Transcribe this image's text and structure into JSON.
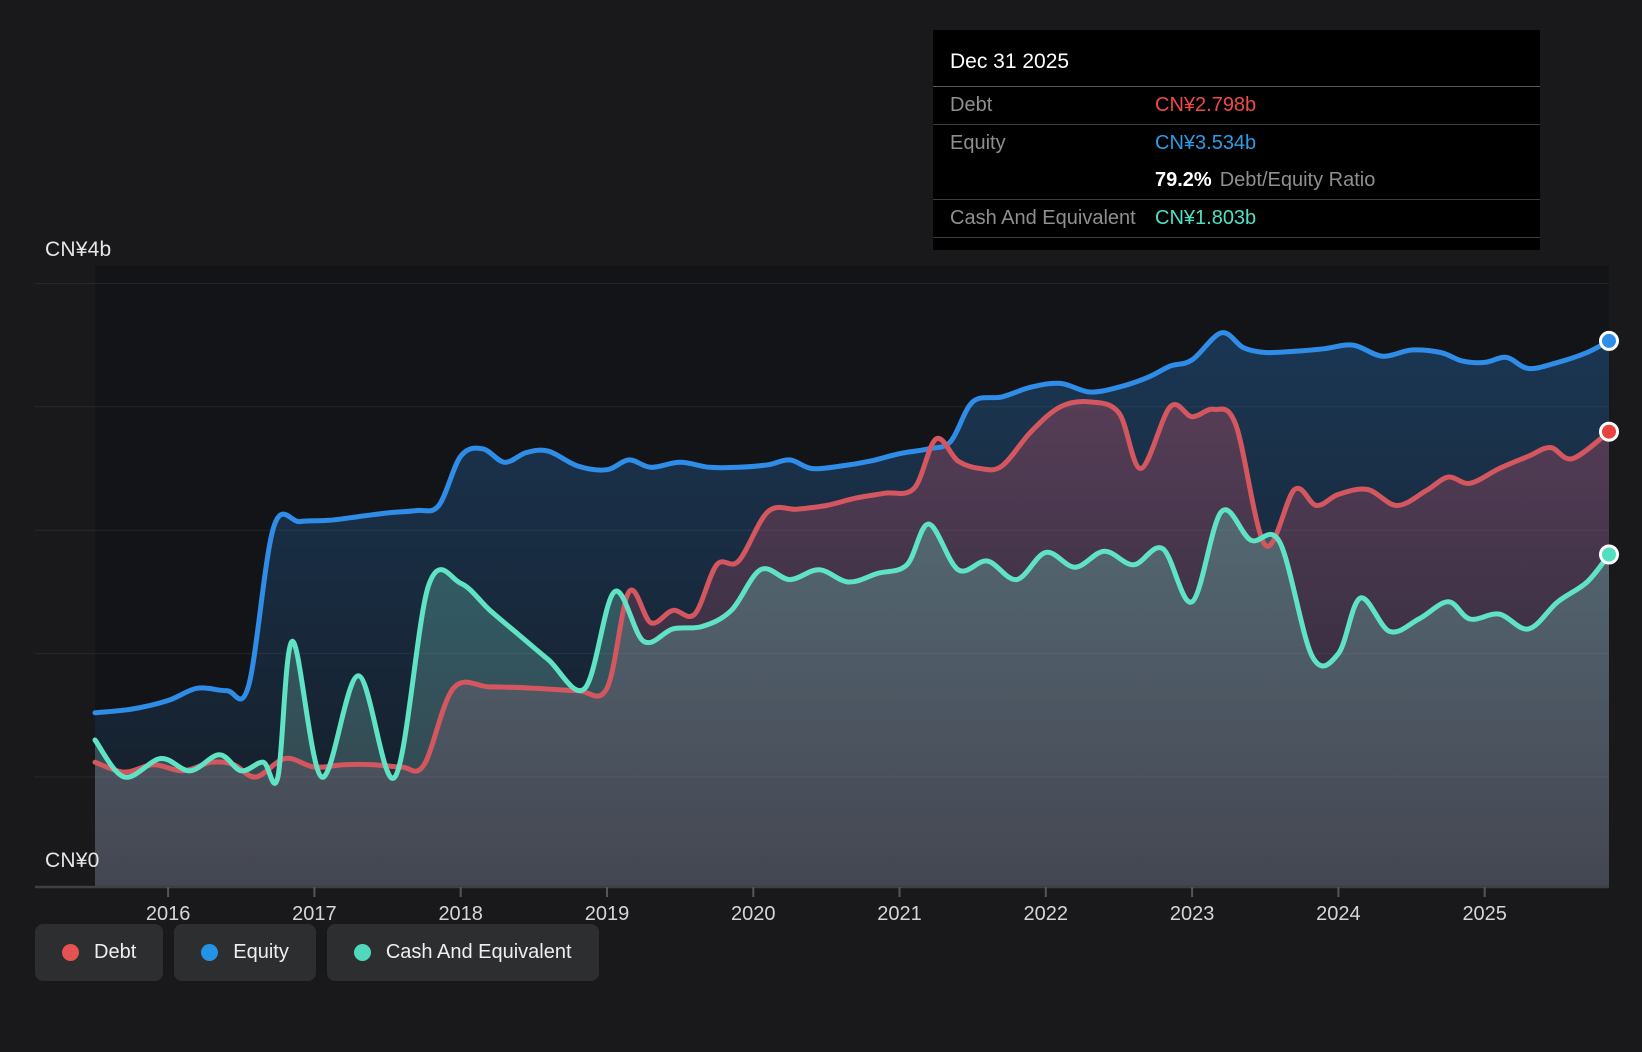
{
  "y_axis": {
    "top_label": "CN¥4b",
    "bottom_label": "CN¥0"
  },
  "x_axis": {
    "tick_years": [
      2016,
      2017,
      2018,
      2019,
      2020,
      2021,
      2022,
      2023,
      2024,
      2025
    ]
  },
  "tooltip": {
    "date": "Dec 31 2025",
    "debt_label": "Debt",
    "debt_value": "CN¥2.798b",
    "equity_label": "Equity",
    "equity_value": "CN¥3.534b",
    "ratio_value": "79.2%",
    "ratio_label": "Debt/Equity Ratio",
    "cash_label": "Cash And Equivalent",
    "cash_value": "CN¥1.803b"
  },
  "legend": [
    {
      "label": "Debt",
      "color": "#e25352"
    },
    {
      "label": "Equity",
      "color": "#2492e6"
    },
    {
      "label": "Cash And Equivalent",
      "color": "#4fd8bc"
    }
  ],
  "colors": {
    "debt_line": "#d4565f",
    "equity_line": "#2f8de8",
    "cash_line": "#5fe3c4",
    "debt_dot": "#e8433f",
    "equity_dot": "#2e8fe8",
    "cash_dot": "#52dfc0",
    "background": "#19191b",
    "plot_background": "#131417",
    "tooltip_background": "#000000"
  },
  "chart_data": {
    "type": "area",
    "title": "Debt to Equity History and Analysis",
    "currency_unit": "CN¥ billions",
    "x_range": [
      2015.5,
      2025.85
    ],
    "y_range": [
      0,
      4
    ],
    "y_tick_interval": 1,
    "grid": true,
    "legend_position": "bottom-left",
    "latest": {
      "date": "Dec 31 2025",
      "debt_b": 2.798,
      "equity_b": 3.534,
      "cash_b": 1.803,
      "debt_equity_ratio_pct": 79.2
    },
    "series": [
      {
        "name": "Equity",
        "points": [
          [
            2015.5,
            0.52
          ],
          [
            2015.75,
            0.55
          ],
          [
            2016.0,
            0.62
          ],
          [
            2016.2,
            0.72
          ],
          [
            2016.4,
            0.7
          ],
          [
            2016.55,
            0.74
          ],
          [
            2016.72,
            2.02
          ],
          [
            2016.9,
            2.07
          ],
          [
            2017.1,
            2.08
          ],
          [
            2017.3,
            2.11
          ],
          [
            2017.5,
            2.14
          ],
          [
            2017.7,
            2.16
          ],
          [
            2017.85,
            2.2
          ],
          [
            2018.0,
            2.6
          ],
          [
            2018.15,
            2.66
          ],
          [
            2018.3,
            2.55
          ],
          [
            2018.45,
            2.63
          ],
          [
            2018.6,
            2.64
          ],
          [
            2018.8,
            2.52
          ],
          [
            2019.0,
            2.49
          ],
          [
            2019.15,
            2.57
          ],
          [
            2019.3,
            2.51
          ],
          [
            2019.5,
            2.55
          ],
          [
            2019.7,
            2.51
          ],
          [
            2019.9,
            2.51
          ],
          [
            2020.1,
            2.53
          ],
          [
            2020.25,
            2.57
          ],
          [
            2020.4,
            2.5
          ],
          [
            2020.6,
            2.52
          ],
          [
            2020.8,
            2.56
          ],
          [
            2021.0,
            2.62
          ],
          [
            2021.2,
            2.66
          ],
          [
            2021.35,
            2.72
          ],
          [
            2021.5,
            3.04
          ],
          [
            2021.7,
            3.08
          ],
          [
            2021.9,
            3.16
          ],
          [
            2022.1,
            3.19
          ],
          [
            2022.3,
            3.12
          ],
          [
            2022.5,
            3.16
          ],
          [
            2022.7,
            3.24
          ],
          [
            2022.85,
            3.33
          ],
          [
            2023.0,
            3.38
          ],
          [
            2023.2,
            3.6
          ],
          [
            2023.35,
            3.48
          ],
          [
            2023.5,
            3.44
          ],
          [
            2023.7,
            3.45
          ],
          [
            2023.9,
            3.47
          ],
          [
            2024.1,
            3.5
          ],
          [
            2024.3,
            3.41
          ],
          [
            2024.5,
            3.46
          ],
          [
            2024.7,
            3.44
          ],
          [
            2024.85,
            3.37
          ],
          [
            2025.0,
            3.36
          ],
          [
            2025.15,
            3.4
          ],
          [
            2025.3,
            3.31
          ],
          [
            2025.5,
            3.36
          ],
          [
            2025.7,
            3.44
          ],
          [
            2025.85,
            3.534
          ]
        ]
      },
      {
        "name": "Debt",
        "points": [
          [
            2015.5,
            0.12
          ],
          [
            2015.7,
            0.04
          ],
          [
            2015.9,
            0.1
          ],
          [
            2016.1,
            0.05
          ],
          [
            2016.3,
            0.12
          ],
          [
            2016.45,
            0.1
          ],
          [
            2016.6,
            0.0
          ],
          [
            2016.8,
            0.15
          ],
          [
            2017.0,
            0.08
          ],
          [
            2017.2,
            0.1
          ],
          [
            2017.4,
            0.1
          ],
          [
            2017.6,
            0.08
          ],
          [
            2017.75,
            0.1
          ],
          [
            2017.95,
            0.72
          ],
          [
            2018.2,
            0.73
          ],
          [
            2018.5,
            0.72
          ],
          [
            2018.8,
            0.7
          ],
          [
            2019.0,
            0.72
          ],
          [
            2019.15,
            1.5
          ],
          [
            2019.3,
            1.25
          ],
          [
            2019.45,
            1.35
          ],
          [
            2019.6,
            1.32
          ],
          [
            2019.75,
            1.72
          ],
          [
            2019.9,
            1.75
          ],
          [
            2020.1,
            2.15
          ],
          [
            2020.3,
            2.17
          ],
          [
            2020.5,
            2.2
          ],
          [
            2020.7,
            2.26
          ],
          [
            2020.9,
            2.3
          ],
          [
            2021.1,
            2.34
          ],
          [
            2021.25,
            2.74
          ],
          [
            2021.4,
            2.56
          ],
          [
            2021.55,
            2.5
          ],
          [
            2021.7,
            2.52
          ],
          [
            2021.9,
            2.8
          ],
          [
            2022.1,
            3.0
          ],
          [
            2022.3,
            3.04
          ],
          [
            2022.5,
            2.95
          ],
          [
            2022.65,
            2.5
          ],
          [
            2022.85,
            3.0
          ],
          [
            2023.0,
            2.92
          ],
          [
            2023.15,
            2.98
          ],
          [
            2023.3,
            2.85
          ],
          [
            2023.5,
            1.88
          ],
          [
            2023.7,
            2.33
          ],
          [
            2023.85,
            2.2
          ],
          [
            2024.0,
            2.29
          ],
          [
            2024.2,
            2.33
          ],
          [
            2024.4,
            2.2
          ],
          [
            2024.6,
            2.32
          ],
          [
            2024.75,
            2.43
          ],
          [
            2024.9,
            2.38
          ],
          [
            2025.1,
            2.5
          ],
          [
            2025.3,
            2.6
          ],
          [
            2025.45,
            2.67
          ],
          [
            2025.6,
            2.58
          ],
          [
            2025.85,
            2.798
          ]
        ]
      },
      {
        "name": "Cash And Equivalent",
        "points": [
          [
            2015.5,
            0.3
          ],
          [
            2015.7,
            0.0
          ],
          [
            2015.95,
            0.15
          ],
          [
            2016.15,
            0.05
          ],
          [
            2016.35,
            0.18
          ],
          [
            2016.5,
            0.05
          ],
          [
            2016.65,
            0.12
          ],
          [
            2016.75,
            0.0
          ],
          [
            2016.85,
            1.1
          ],
          [
            2017.05,
            0.0
          ],
          [
            2017.3,
            0.82
          ],
          [
            2017.55,
            0.0
          ],
          [
            2017.78,
            1.55
          ],
          [
            2018.0,
            1.57
          ],
          [
            2018.2,
            1.35
          ],
          [
            2018.4,
            1.15
          ],
          [
            2018.6,
            0.95
          ],
          [
            2018.85,
            0.72
          ],
          [
            2019.05,
            1.5
          ],
          [
            2019.25,
            1.1
          ],
          [
            2019.45,
            1.2
          ],
          [
            2019.65,
            1.22
          ],
          [
            2019.85,
            1.35
          ],
          [
            2020.05,
            1.68
          ],
          [
            2020.25,
            1.6
          ],
          [
            2020.45,
            1.68
          ],
          [
            2020.65,
            1.58
          ],
          [
            2020.85,
            1.65
          ],
          [
            2021.05,
            1.72
          ],
          [
            2021.2,
            2.05
          ],
          [
            2021.4,
            1.68
          ],
          [
            2021.6,
            1.75
          ],
          [
            2021.8,
            1.6
          ],
          [
            2022.0,
            1.82
          ],
          [
            2022.2,
            1.7
          ],
          [
            2022.4,
            1.83
          ],
          [
            2022.6,
            1.72
          ],
          [
            2022.8,
            1.85
          ],
          [
            2023.0,
            1.42
          ],
          [
            2023.2,
            2.15
          ],
          [
            2023.4,
            1.92
          ],
          [
            2023.6,
            1.9
          ],
          [
            2023.82,
            0.98
          ],
          [
            2024.0,
            1.0
          ],
          [
            2024.15,
            1.45
          ],
          [
            2024.35,
            1.18
          ],
          [
            2024.55,
            1.28
          ],
          [
            2024.75,
            1.42
          ],
          [
            2024.9,
            1.28
          ],
          [
            2025.1,
            1.32
          ],
          [
            2025.3,
            1.2
          ],
          [
            2025.5,
            1.42
          ],
          [
            2025.7,
            1.58
          ],
          [
            2025.85,
            1.803
          ]
        ]
      }
    ]
  }
}
